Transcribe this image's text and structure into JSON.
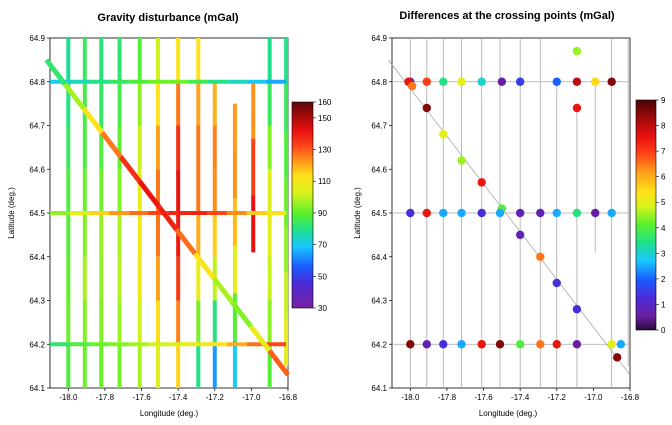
{
  "chart_data": [
    {
      "type": "track-map",
      "title": "Gravity disturbance (mGal)",
      "xlabel": "Longitude (deg.)",
      "ylabel": "Latitude (deg.)",
      "xlim": [
        -18.1,
        -16.8
      ],
      "ylim": [
        64.1,
        64.9
      ],
      "xticks": [
        "-18.0",
        "-17.8",
        "-17.6",
        "-17.4",
        "-17.2",
        "-17.0",
        "-16.8"
      ],
      "yticks": [
        "64.1",
        "64.2",
        "64.3",
        "64.4",
        "64.5",
        "64.6",
        "64.7",
        "64.8",
        "64.9"
      ],
      "colorbar": {
        "min": 30,
        "max": 160,
        "ticks": [
          "30",
          "50",
          "70",
          "90",
          "110",
          "130",
          "150",
          "160"
        ]
      },
      "ns_tracks": [
        {
          "lon": -18.0,
          "lat": [
            64.1,
            64.9
          ],
          "values": [
            80,
            95,
            88,
            92,
            85,
            90,
            78,
            82,
            75
          ]
        },
        {
          "lon": -17.91,
          "lat": [
            64.1,
            64.9
          ],
          "values": [
            95,
            88,
            100,
            96,
            92,
            90,
            85,
            88,
            80
          ]
        },
        {
          "lon": -17.82,
          "lat": [
            64.1,
            64.9
          ],
          "values": [
            88,
            95,
            92,
            98,
            94,
            90,
            85,
            82,
            80
          ]
        },
        {
          "lon": -17.72,
          "lat": [
            64.1,
            64.9
          ],
          "values": [
            90,
            95,
            98,
            100,
            96,
            92,
            88,
            84,
            80
          ]
        },
        {
          "lon": -17.61,
          "lat": [
            64.1,
            64.9
          ],
          "values": [
            95,
            100,
            104,
            110,
            108,
            104,
            98,
            92,
            85
          ]
        },
        {
          "lon": -17.51,
          "lat": [
            64.1,
            64.9
          ],
          "values": [
            100,
            110,
            118,
            125,
            128,
            125,
            118,
            108,
            95
          ]
        },
        {
          "lon": -17.4,
          "lat": [
            64.1,
            64.9
          ],
          "values": [
            110,
            120,
            130,
            138,
            142,
            140,
            132,
            120,
            105
          ]
        },
        {
          "lon": -17.29,
          "lat": [
            64.1,
            64.9
          ],
          "values": [
            75,
            85,
            100,
            115,
            125,
            128,
            125,
            118,
            108
          ]
        },
        {
          "lon": -17.2,
          "lat": [
            64.1,
            64.8
          ],
          "values": [
            55,
            72,
            90,
            110,
            122,
            126,
            124,
            115
          ]
        },
        {
          "lon": -17.09,
          "lat": [
            64.1,
            64.75
          ],
          "values": [
            60,
            80,
            98,
            114,
            122,
            124,
            120
          ]
        },
        {
          "lon": -16.99,
          "lat": [
            64.41,
            64.8
          ],
          "values": [
            145,
            138,
            128,
            118
          ]
        },
        {
          "lon": -16.9,
          "lat": [
            64.1,
            64.9
          ],
          "values": [
            85,
            92,
            98,
            104,
            108,
            100,
            88,
            80,
            78
          ]
        },
        {
          "lon": -16.81,
          "lat": [
            64.15,
            64.9
          ],
          "values": [
            110,
            104,
            98,
            92,
            90,
            86,
            82,
            78
          ]
        }
      ],
      "ew_tracks": [
        {
          "lat": 64.8,
          "lon": [
            -18.1,
            -16.81
          ],
          "values": [
            70,
            72,
            78,
            82,
            86,
            90,
            94,
            90,
            82,
            78,
            72,
            68,
            62
          ]
        },
        {
          "lat": 64.5,
          "lon": [
            -18.1,
            -16.81
          ],
          "values": [
            90,
            100,
            110,
            120,
            125,
            130,
            135,
            140,
            136,
            128,
            120,
            112,
            108
          ]
        },
        {
          "lat": 64.2,
          "lon": [
            -18.1,
            -16.81
          ],
          "values": [
            80,
            85,
            90,
            92,
            96,
            100,
            104,
            106,
            110,
            116,
            124,
            130,
            134
          ]
        }
      ],
      "diagonal_track": {
        "lon": [
          -18.12,
          -16.8
        ],
        "lat": [
          64.85,
          64.13
        ],
        "values": [
          75,
          90,
          105,
          120,
          132,
          140,
          142,
          135,
          120,
          104,
          92,
          96,
          118,
          140
        ]
      }
    },
    {
      "type": "scatter",
      "title": "Differences at the crossing points (mGal)",
      "xlabel": "Longitude (deg.)",
      "ylabel": "Latitude (deg.)",
      "xlim": [
        -18.1,
        -16.8
      ],
      "ylim": [
        64.1,
        64.9
      ],
      "xticks": [
        "-18.0",
        "-17.8",
        "-17.6",
        "-17.4",
        "-17.2",
        "-17.0",
        "-16.8"
      ],
      "yticks": [
        "64.1",
        "64.2",
        "64.3",
        "64.4",
        "64.5",
        "64.6",
        "64.7",
        "64.8",
        "64.9"
      ],
      "colorbar": {
        "min": 0,
        "max": 9,
        "ticks": [
          "0",
          "1",
          "2",
          "3",
          "4",
          "5",
          "6",
          "7",
          "8",
          "9"
        ]
      },
      "points": [
        {
          "lon": -18.0,
          "lat": 64.8,
          "value": 1.5
        },
        {
          "lon": -18.01,
          "lat": 64.8,
          "value": 7.5
        },
        {
          "lon": -17.99,
          "lat": 64.79,
          "value": 6.5
        },
        {
          "lon": -17.91,
          "lat": 64.8,
          "value": 7.0
        },
        {
          "lon": -17.82,
          "lat": 64.8,
          "value": 3.5
        },
        {
          "lon": -17.72,
          "lat": 64.8,
          "value": 5.0
        },
        {
          "lon": -17.61,
          "lat": 64.8,
          "value": 3.0
        },
        {
          "lon": -17.5,
          "lat": 64.8,
          "value": 0.6
        },
        {
          "lon": -17.4,
          "lat": 64.8,
          "value": 1.5
        },
        {
          "lon": -17.2,
          "lat": 64.8,
          "value": 2.0
        },
        {
          "lon": -17.09,
          "lat": 64.8,
          "value": 8.0
        },
        {
          "lon": -16.99,
          "lat": 64.8,
          "value": 5.5
        },
        {
          "lon": -16.9,
          "lat": 64.8,
          "value": 8.5
        },
        {
          "lon": -17.09,
          "lat": 64.87,
          "value": 4.5
        },
        {
          "lon": -17.09,
          "lat": 64.74,
          "value": 7.5
        },
        {
          "lon": -17.91,
          "lat": 64.74,
          "value": 8.5
        },
        {
          "lon": -17.82,
          "lat": 64.68,
          "value": 5.0
        },
        {
          "lon": -17.72,
          "lat": 64.62,
          "value": 4.5
        },
        {
          "lon": -17.61,
          "lat": 64.57,
          "value": 7.5
        },
        {
          "lon": -17.5,
          "lat": 64.51,
          "value": 4.0
        },
        {
          "lon": -18.0,
          "lat": 64.5,
          "value": 1.3
        },
        {
          "lon": -17.91,
          "lat": 64.5,
          "value": 7.5
        },
        {
          "lon": -17.82,
          "lat": 64.5,
          "value": 2.5
        },
        {
          "lon": -17.72,
          "lat": 64.5,
          "value": 2.5
        },
        {
          "lon": -17.61,
          "lat": 64.5,
          "value": 1.3
        },
        {
          "lon": -17.51,
          "lat": 64.5,
          "value": 2.5
        },
        {
          "lon": -17.4,
          "lat": 64.5,
          "value": 0.8
        },
        {
          "lon": -17.29,
          "lat": 64.5,
          "value": 0.8
        },
        {
          "lon": -17.2,
          "lat": 64.5,
          "value": 2.5
        },
        {
          "lon": -17.09,
          "lat": 64.5,
          "value": 3.5
        },
        {
          "lon": -16.99,
          "lat": 64.5,
          "value": 0.6
        },
        {
          "lon": -16.9,
          "lat": 64.5,
          "value": 2.5
        },
        {
          "lon": -17.4,
          "lat": 64.45,
          "value": 0.8
        },
        {
          "lon": -17.29,
          "lat": 64.4,
          "value": 6.5
        },
        {
          "lon": -17.2,
          "lat": 64.34,
          "value": 1.4
        },
        {
          "lon": -17.09,
          "lat": 64.28,
          "value": 1.3
        },
        {
          "lon": -18.0,
          "lat": 64.2,
          "value": 8.5
        },
        {
          "lon": -17.91,
          "lat": 64.2,
          "value": 0.8
        },
        {
          "lon": -17.82,
          "lat": 64.2,
          "value": 1.3
        },
        {
          "lon": -17.72,
          "lat": 64.2,
          "value": 2.5
        },
        {
          "lon": -17.61,
          "lat": 64.2,
          "value": 7.5
        },
        {
          "lon": -17.51,
          "lat": 64.2,
          "value": 8.5
        },
        {
          "lon": -17.4,
          "lat": 64.2,
          "value": 4.0
        },
        {
          "lon": -17.29,
          "lat": 64.2,
          "value": 6.5
        },
        {
          "lon": -17.2,
          "lat": 64.2,
          "value": 7.5
        },
        {
          "lon": -17.09,
          "lat": 64.2,
          "value": 0.6
        },
        {
          "lon": -16.9,
          "lat": 64.2,
          "value": 5.0
        },
        {
          "lon": -16.85,
          "lat": 64.2,
          "value": 2.5
        },
        {
          "lon": -16.87,
          "lat": 64.17,
          "value": 8.5
        }
      ]
    }
  ]
}
